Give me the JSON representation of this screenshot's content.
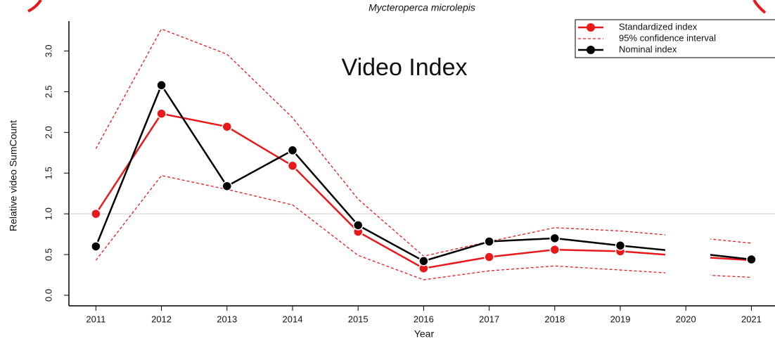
{
  "chart_data": {
    "type": "line",
    "title": "Mycteroperca microlepis",
    "annotation": "Video Index",
    "x_label": "Year",
    "y_label": "Relative video SumCount",
    "x": [
      2011,
      2012,
      2013,
      2014,
      2015,
      2016,
      2017,
      2018,
      2019,
      2020,
      2021
    ],
    "series": [
      {
        "name": "Standardized index",
        "color": "#e8191b",
        "style": "solid",
        "markers": true,
        "values": [
          1.0,
          2.23,
          2.07,
          1.59,
          0.78,
          0.33,
          0.47,
          0.56,
          0.54,
          0.48,
          0.43
        ]
      },
      {
        "name": "95% confidence interval",
        "color": "#e8191b",
        "style": "dashed",
        "markers": false,
        "upper": [
          1.8,
          3.27,
          2.96,
          2.18,
          1.18,
          0.48,
          0.66,
          0.83,
          0.79,
          0.72,
          0.64
        ],
        "lower": [
          0.43,
          1.47,
          1.3,
          1.11,
          0.49,
          0.19,
          0.3,
          0.36,
          0.31,
          0.26,
          0.22
        ]
      },
      {
        "name": "Nominal index",
        "color": "#000000",
        "style": "solid",
        "markers": true,
        "values": [
          0.6,
          2.58,
          1.34,
          1.78,
          0.86,
          0.42,
          0.66,
          0.7,
          0.61,
          0.53,
          0.44
        ]
      }
    ],
    "reference_line": 1,
    "xlim": [
      2010.61,
      2021.36
    ],
    "ylim": [
      -0.13,
      3.41
    ],
    "xticks": [
      2011,
      2012,
      2013,
      2014,
      2015,
      2016,
      2017,
      2018,
      2019,
      2020,
      2021
    ],
    "yticks": [
      {
        "value": 0,
        "label": "0.0"
      },
      {
        "value": 0.5,
        "label": "0.5"
      },
      {
        "value": 1,
        "label": "1.0"
      },
      {
        "value": 1.5,
        "label": "1.5"
      },
      {
        "value": 2,
        "label": "2.0"
      },
      {
        "value": 2.5,
        "label": "2.5"
      },
      {
        "value": 3,
        "label": "3.0"
      }
    ],
    "legend": "top-right"
  }
}
